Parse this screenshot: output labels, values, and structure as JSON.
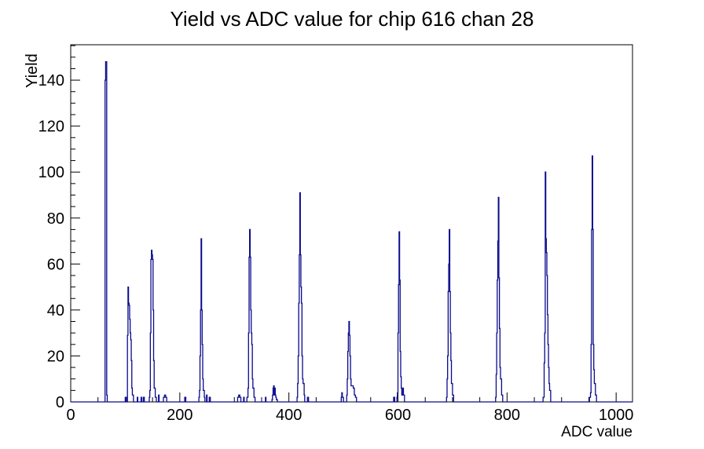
{
  "chart_data": {
    "type": "line",
    "style": "step-histogram",
    "title": "Yield vs ADC value for chip 616 chan 28",
    "xlabel": "ADC value",
    "ylabel": "Yield",
    "xlim": [
      0,
      1030
    ],
    "ylim": [
      0,
      155.4
    ],
    "x_major_ticks": [
      0,
      200,
      400,
      600,
      800,
      1000
    ],
    "x_minor_step": 50,
    "y_major_ticks": [
      0,
      20,
      40,
      60,
      80,
      100,
      120,
      140
    ],
    "y_minor_step": 5,
    "grid": false,
    "legend": "none",
    "line_color": "#0a0a8c",
    "frame_color": "#000000",
    "background_color": "#ffffff",
    "peaks_summary": [
      {
        "adc": 64,
        "yield": 148
      },
      {
        "adc": 105,
        "yield": 50
      },
      {
        "adc": 148,
        "yield": 66
      },
      {
        "adc": 239,
        "yield": 71
      },
      {
        "adc": 328,
        "yield": 75
      },
      {
        "adc": 372,
        "yield": 7
      },
      {
        "adc": 420,
        "yield": 91
      },
      {
        "adc": 510,
        "yield": 35
      },
      {
        "adc": 602,
        "yield": 74
      },
      {
        "adc": 694,
        "yield": 75
      },
      {
        "adc": 784,
        "yield": 89
      },
      {
        "adc": 870,
        "yield": 100
      },
      {
        "adc": 956,
        "yield": 107
      }
    ],
    "step_points": [
      [
        63,
        140
      ],
      [
        64,
        148
      ],
      [
        66,
        3
      ],
      [
        67,
        0
      ],
      [
        100,
        2
      ],
      [
        102,
        0
      ],
      [
        104,
        29
      ],
      [
        105,
        50
      ],
      [
        106,
        43
      ],
      [
        107,
        42
      ],
      [
        108,
        36
      ],
      [
        109,
        30
      ],
      [
        110,
        27
      ],
      [
        111,
        18
      ],
      [
        112,
        6
      ],
      [
        113,
        3
      ],
      [
        115,
        0
      ],
      [
        122,
        2
      ],
      [
        123,
        0
      ],
      [
        129,
        2
      ],
      [
        130,
        0
      ],
      [
        133,
        2
      ],
      [
        135,
        0
      ],
      [
        144,
        2
      ],
      [
        145,
        5
      ],
      [
        146,
        30
      ],
      [
        147,
        62
      ],
      [
        148,
        66
      ],
      [
        149,
        64
      ],
      [
        150,
        62
      ],
      [
        151,
        40
      ],
      [
        152,
        18
      ],
      [
        153,
        6
      ],
      [
        155,
        2
      ],
      [
        157,
        0
      ],
      [
        161,
        3
      ],
      [
        162,
        0
      ],
      [
        170,
        2
      ],
      [
        172,
        3
      ],
      [
        174,
        2
      ],
      [
        176,
        0
      ],
      [
        209,
        2
      ],
      [
        211,
        0
      ],
      [
        235,
        2
      ],
      [
        236,
        5
      ],
      [
        237,
        20
      ],
      [
        238,
        40
      ],
      [
        239,
        71
      ],
      [
        240,
        40
      ],
      [
        241,
        25
      ],
      [
        242,
        10
      ],
      [
        243,
        5
      ],
      [
        245,
        2
      ],
      [
        246,
        0
      ],
      [
        249,
        3
      ],
      [
        250,
        0
      ],
      [
        254,
        2
      ],
      [
        256,
        0
      ],
      [
        306,
        2
      ],
      [
        308,
        3
      ],
      [
        310,
        2
      ],
      [
        312,
        0
      ],
      [
        317,
        2
      ],
      [
        318,
        0
      ],
      [
        323,
        2
      ],
      [
        325,
        6
      ],
      [
        326,
        30
      ],
      [
        327,
        63
      ],
      [
        328,
        75
      ],
      [
        329,
        63
      ],
      [
        330,
        40
      ],
      [
        331,
        30
      ],
      [
        332,
        25
      ],
      [
        333,
        10
      ],
      [
        334,
        6
      ],
      [
        336,
        2
      ],
      [
        338,
        0
      ],
      [
        357,
        2
      ],
      [
        358,
        0
      ],
      [
        369,
        1
      ],
      [
        370,
        3
      ],
      [
        371,
        6
      ],
      [
        372,
        7
      ],
      [
        373,
        3
      ],
      [
        374,
        6
      ],
      [
        375,
        3
      ],
      [
        376,
        2
      ],
      [
        377,
        1
      ],
      [
        379,
        0
      ],
      [
        415,
        2
      ],
      [
        416,
        8
      ],
      [
        417,
        20
      ],
      [
        418,
        43
      ],
      [
        419,
        64
      ],
      [
        420,
        91
      ],
      [
        421,
        64
      ],
      [
        422,
        50
      ],
      [
        423,
        43
      ],
      [
        424,
        20
      ],
      [
        425,
        10
      ],
      [
        426,
        8
      ],
      [
        428,
        3
      ],
      [
        429,
        0
      ],
      [
        434,
        2
      ],
      [
        436,
        0
      ],
      [
        496,
        2
      ],
      [
        497,
        4
      ],
      [
        498,
        2
      ],
      [
        500,
        0
      ],
      [
        506,
        3
      ],
      [
        507,
        10
      ],
      [
        508,
        22
      ],
      [
        509,
        30
      ],
      [
        510,
        35
      ],
      [
        511,
        29
      ],
      [
        512,
        20
      ],
      [
        513,
        10
      ],
      [
        514,
        7
      ],
      [
        518,
        6
      ],
      [
        520,
        3
      ],
      [
        522,
        2
      ],
      [
        524,
        0
      ],
      [
        592,
        2
      ],
      [
        594,
        0
      ],
      [
        598,
        2
      ],
      [
        599,
        4
      ],
      [
        600,
        30
      ],
      [
        601,
        51
      ],
      [
        602,
        74
      ],
      [
        603,
        53
      ],
      [
        604,
        22
      ],
      [
        605,
        11
      ],
      [
        606,
        6
      ],
      [
        607,
        3
      ],
      [
        609,
        6
      ],
      [
        610,
        3
      ],
      [
        612,
        0
      ],
      [
        689,
        2
      ],
      [
        690,
        10
      ],
      [
        691,
        20
      ],
      [
        692,
        48
      ],
      [
        693,
        60
      ],
      [
        694,
        75
      ],
      [
        695,
        48
      ],
      [
        696,
        30
      ],
      [
        697,
        18
      ],
      [
        698,
        8
      ],
      [
        700,
        3
      ],
      [
        702,
        0
      ],
      [
        779,
        2
      ],
      [
        780,
        12
      ],
      [
        781,
        30
      ],
      [
        782,
        53
      ],
      [
        783,
        70
      ],
      [
        784,
        89
      ],
      [
        785,
        54
      ],
      [
        786,
        32
      ],
      [
        787,
        15
      ],
      [
        788,
        10
      ],
      [
        790,
        3
      ],
      [
        792,
        0
      ],
      [
        866,
        2
      ],
      [
        868,
        17
      ],
      [
        869,
        30
      ],
      [
        870,
        100
      ],
      [
        871,
        71
      ],
      [
        872,
        65
      ],
      [
        873,
        55
      ],
      [
        874,
        38
      ],
      [
        875,
        25
      ],
      [
        876,
        15
      ],
      [
        877,
        8
      ],
      [
        878,
        5
      ],
      [
        880,
        0
      ],
      [
        951,
        2
      ],
      [
        953,
        4
      ],
      [
        954,
        25
      ],
      [
        955,
        75
      ],
      [
        956,
        107
      ],
      [
        957,
        75
      ],
      [
        958,
        25
      ],
      [
        959,
        14
      ],
      [
        960,
        8
      ],
      [
        962,
        3
      ],
      [
        964,
        0
      ]
    ]
  }
}
